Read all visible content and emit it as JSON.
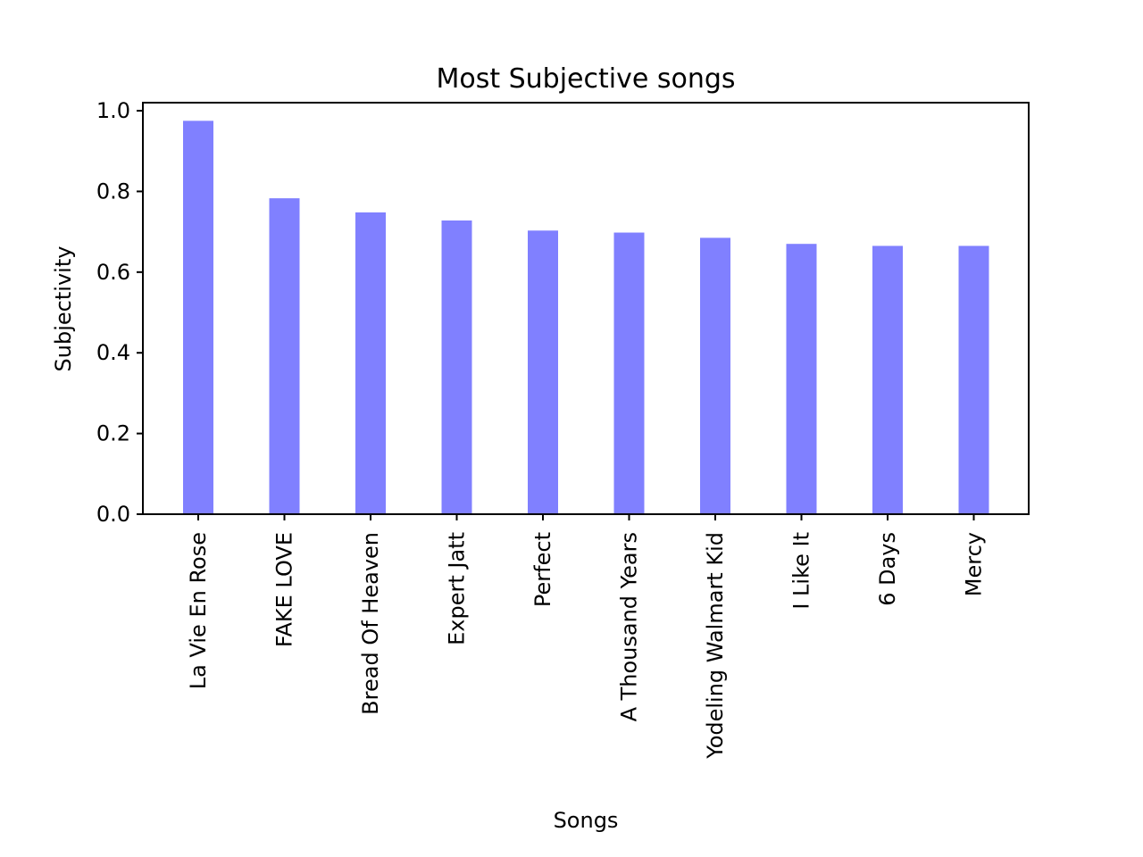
{
  "chart_data": {
    "type": "bar",
    "title": "Most Subjective songs",
    "xlabel": "Songs",
    "ylabel": "Subjectivity",
    "categories": [
      "La Vie En Rose",
      "FAKE LOVE",
      "Bread Of Heaven",
      "Expert Jatt",
      "Perfect",
      "A Thousand Years",
      "Yodeling Walmart Kid",
      "I Like It",
      "6 Days",
      "Mercy"
    ],
    "values": [
      0.975,
      0.783,
      0.748,
      0.728,
      0.703,
      0.698,
      0.685,
      0.67,
      0.665,
      0.665
    ],
    "yticks": [
      "0.0",
      "0.2",
      "0.4",
      "0.6",
      "0.8",
      "1.0"
    ],
    "ylim": [
      0,
      1.02
    ],
    "bar_color": "#8080ff",
    "grid": false,
    "legend": "none"
  }
}
